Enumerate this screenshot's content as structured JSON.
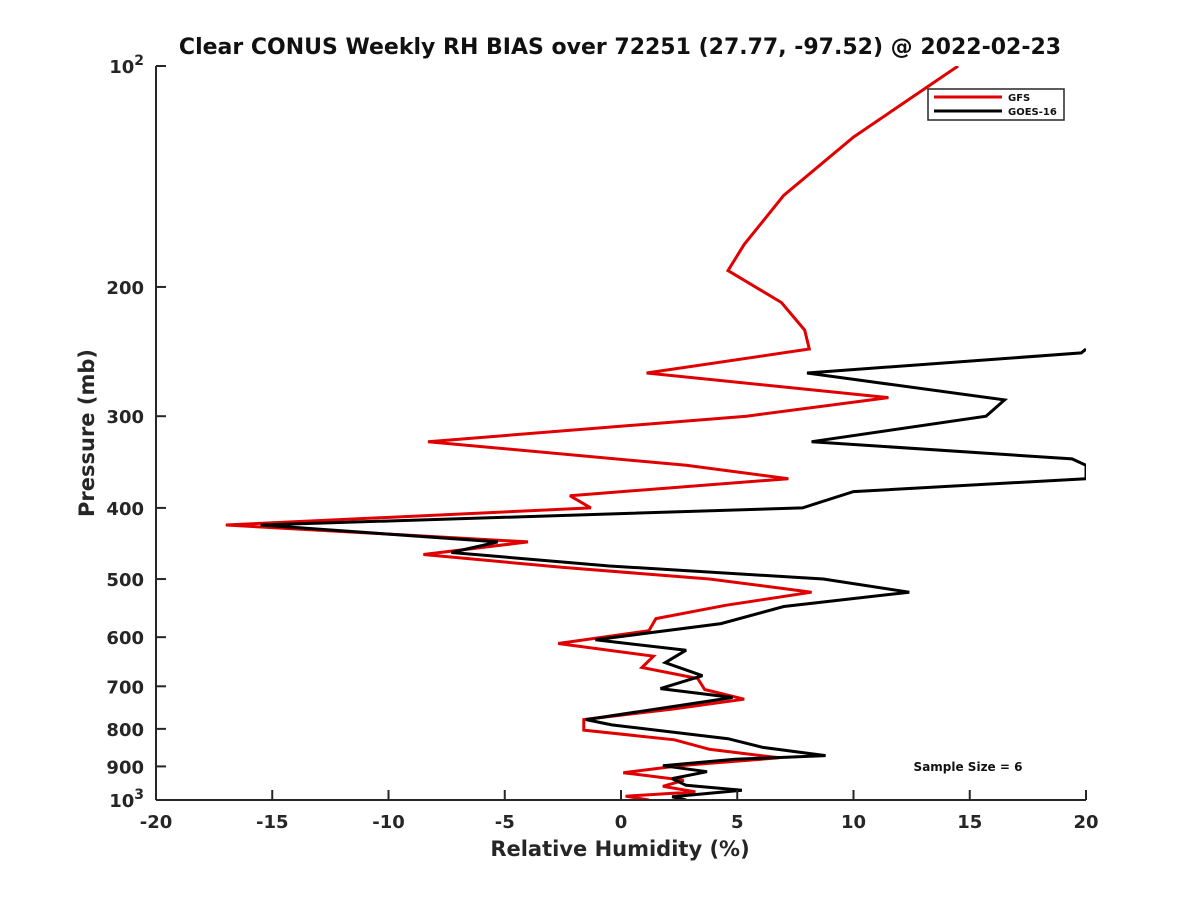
{
  "chart_data": {
    "type": "line",
    "title": "Clear CONUS Weekly RH BIAS over 72251 (27.77, -97.52) @ 2022-02-23",
    "xlabel": "Relative Humidity (%)",
    "ylabel": "Pressure (mb)",
    "xlim": [
      -20,
      20
    ],
    "ylim": [
      1000,
      100
    ],
    "y_scale": "log",
    "y_reversed": true,
    "grid": false,
    "legend_position": "top-right",
    "annotation": "Sample Size = 6",
    "x_ticks": [
      "-20",
      "-15",
      "-10",
      "-5",
      "0",
      "5",
      "10",
      "15",
      "20"
    ],
    "y_ticks": [
      {
        "base": "10",
        "exp": "2"
      },
      {
        "base": "200",
        "exp": ""
      },
      {
        "base": "300",
        "exp": ""
      },
      {
        "base": "400",
        "exp": ""
      },
      {
        "base": "500",
        "exp": ""
      },
      {
        "base": "600",
        "exp": ""
      },
      {
        "base": "700",
        "exp": ""
      },
      {
        "base": "800",
        "exp": ""
      },
      {
        "base": "900",
        "exp": ""
      },
      {
        "base": "10",
        "exp": "3"
      }
    ],
    "series": [
      {
        "name": "GFS",
        "color": "#e00000",
        "points": [
          [
            14.5,
            100
          ],
          [
            10.0,
            125
          ],
          [
            7.0,
            150
          ],
          [
            5.3,
            175
          ],
          [
            4.6,
            190
          ],
          [
            6.9,
            210
          ],
          [
            7.9,
            229
          ],
          [
            8.1,
            243
          ],
          [
            1.1,
            262
          ],
          [
            11.5,
            283
          ],
          [
            5.4,
            300
          ],
          [
            -8.3,
            325
          ],
          [
            2.8,
            350
          ],
          [
            7.2,
            365
          ],
          [
            -2.2,
            385
          ],
          [
            -1.3,
            400
          ],
          [
            -17.0,
            422
          ],
          [
            -4.0,
            445
          ],
          [
            -8.5,
            463
          ],
          [
            -2.5,
            482
          ],
          [
            3.8,
            500
          ],
          [
            8.2,
            521
          ],
          [
            4.5,
            543
          ],
          [
            1.5,
            566
          ],
          [
            1.2,
            588
          ],
          [
            -2.7,
            612
          ],
          [
            1.4,
            637
          ],
          [
            0.9,
            660
          ],
          [
            3.3,
            683
          ],
          [
            3.6,
            707
          ],
          [
            5.3,
            729
          ],
          [
            2.2,
            752
          ],
          [
            -1.6,
            777
          ],
          [
            -1.6,
            803
          ],
          [
            2.3,
            828
          ],
          [
            3.8,
            853
          ],
          [
            6.8,
            876
          ],
          [
            2.5,
            898
          ],
          [
            0.1,
            918
          ],
          [
            2.7,
            940
          ],
          [
            1.8,
            958
          ],
          [
            3.2,
            975
          ],
          [
            0.2,
            988
          ],
          [
            1.2,
            1000
          ]
        ]
      },
      {
        "name": "GOES-16",
        "color": "#000000",
        "points": [
          [
            20.0,
            243
          ],
          [
            19.8,
            246
          ],
          [
            8.0,
            262
          ],
          [
            16.5,
            285
          ],
          [
            15.7,
            300
          ],
          [
            8.2,
            325
          ],
          [
            19.4,
            343
          ],
          [
            20.0,
            350
          ],
          [
            20.0,
            365
          ],
          [
            10.0,
            380
          ],
          [
            7.8,
            400
          ],
          [
            -15.5,
            422
          ],
          [
            -5.3,
            445
          ],
          [
            -7.3,
            460
          ],
          [
            -0.5,
            480
          ],
          [
            8.7,
            500
          ],
          [
            12.4,
            521
          ],
          [
            7.0,
            545
          ],
          [
            4.3,
            575
          ],
          [
            -1.1,
            605
          ],
          [
            2.8,
            625
          ],
          [
            1.9,
            650
          ],
          [
            3.5,
            677
          ],
          [
            1.7,
            705
          ],
          [
            4.8,
            725
          ],
          [
            -1.5,
            777
          ],
          [
            -0.4,
            790
          ],
          [
            4.6,
            825
          ],
          [
            6.1,
            848
          ],
          [
            8.8,
            870
          ],
          [
            4.9,
            880
          ],
          [
            1.8,
            898
          ],
          [
            3.7,
            915
          ],
          [
            2.2,
            935
          ],
          [
            2.8,
            955
          ],
          [
            5.2,
            970
          ],
          [
            2.2,
            990
          ],
          [
            2.8,
            1000
          ]
        ]
      }
    ]
  }
}
